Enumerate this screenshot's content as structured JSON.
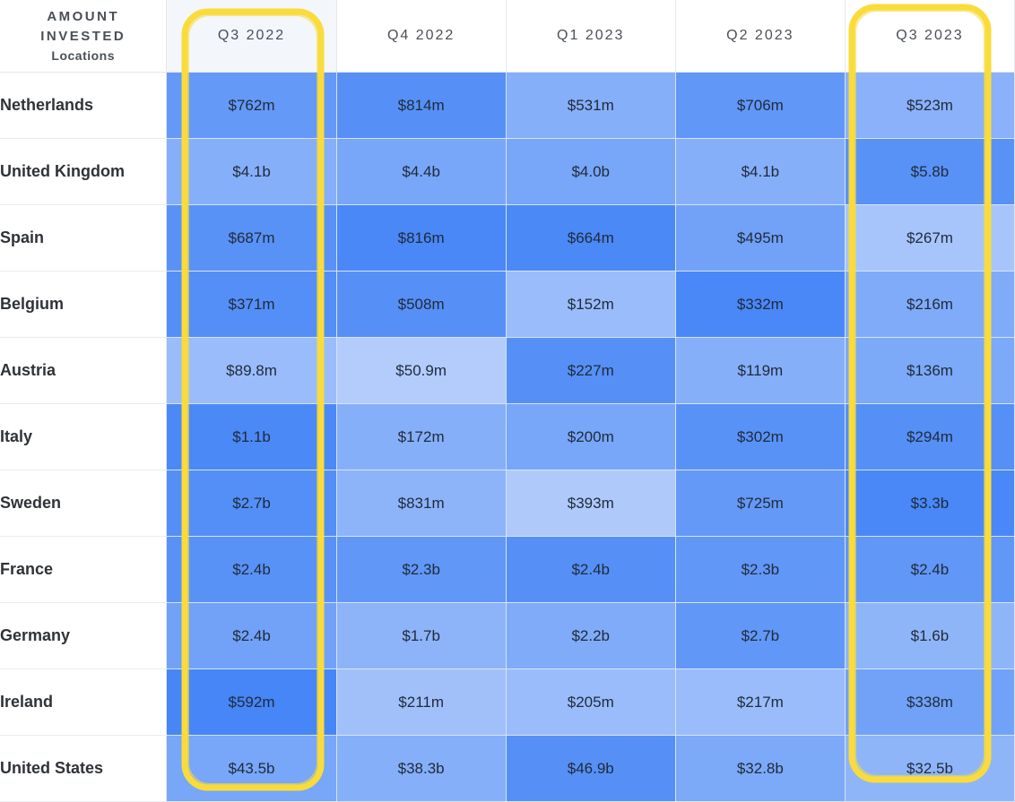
{
  "chart_data": {
    "type": "heatmap",
    "corner_label": [
      "AMOUNT",
      "INVESTED",
      "Locations"
    ],
    "columns": [
      "Q3 2022",
      "Q4 2022",
      "Q1 2023",
      "Q2 2023",
      "Q3 2023"
    ],
    "rows": [
      {
        "name": "Netherlands",
        "cells": [
          "$762m",
          "$814m",
          "$531m",
          "$706m",
          "$523m"
        ]
      },
      {
        "name": "United Kingdom",
        "cells": [
          "$4.1b",
          "$4.4b",
          "$4.0b",
          "$4.1b",
          "$5.8b"
        ]
      },
      {
        "name": "Spain",
        "cells": [
          "$687m",
          "$816m",
          "$664m",
          "$495m",
          "$267m"
        ]
      },
      {
        "name": "Belgium",
        "cells": [
          "$371m",
          "$508m",
          "$152m",
          "$332m",
          "$216m"
        ]
      },
      {
        "name": "Austria",
        "cells": [
          "$89.8m",
          "$50.9m",
          "$227m",
          "$119m",
          "$136m"
        ]
      },
      {
        "name": "Italy",
        "cells": [
          "$1.1b",
          "$172m",
          "$200m",
          "$302m",
          "$294m"
        ]
      },
      {
        "name": "Sweden",
        "cells": [
          "$2.7b",
          "$831m",
          "$393m",
          "$725m",
          "$3.3b"
        ]
      },
      {
        "name": "France",
        "cells": [
          "$2.4b",
          "$2.3b",
          "$2.4b",
          "$2.3b",
          "$2.4b"
        ]
      },
      {
        "name": "Germany",
        "cells": [
          "$2.4b",
          "$1.7b",
          "$2.2b",
          "$2.7b",
          "$1.6b"
        ]
      },
      {
        "name": "Ireland",
        "cells": [
          "$592m",
          "$211m",
          "$205m",
          "$217m",
          "$338m"
        ]
      },
      {
        "name": "United States",
        "cells": [
          "$43.5b",
          "$38.3b",
          "$46.9b",
          "$32.8b",
          "$32.5b"
        ]
      }
    ],
    "intensity": [
      [
        0.7,
        0.8,
        0.45,
        0.72,
        0.42
      ],
      [
        0.45,
        0.55,
        0.55,
        0.45,
        0.78
      ],
      [
        0.78,
        0.9,
        0.88,
        0.6,
        0.2
      ],
      [
        0.82,
        0.8,
        0.3,
        0.9,
        0.5
      ],
      [
        0.3,
        0.12,
        0.8,
        0.45,
        0.52
      ],
      [
        0.88,
        0.45,
        0.55,
        0.78,
        0.8
      ],
      [
        0.82,
        0.4,
        0.15,
        0.7,
        0.9
      ],
      [
        0.78,
        0.72,
        0.8,
        0.72,
        0.72
      ],
      [
        0.6,
        0.4,
        0.5,
        0.72,
        0.38
      ],
      [
        0.92,
        0.25,
        0.3,
        0.3,
        0.6
      ],
      [
        0.55,
        0.45,
        0.8,
        0.52,
        0.38
      ]
    ],
    "highlighted_columns": [
      "Q3 2022",
      "Q3 2023"
    ],
    "colors": {
      "cell_light": "#c3d6fc",
      "cell_dark": "#3b7ff5",
      "highlight_stroke": "#f9dc3c"
    }
  }
}
